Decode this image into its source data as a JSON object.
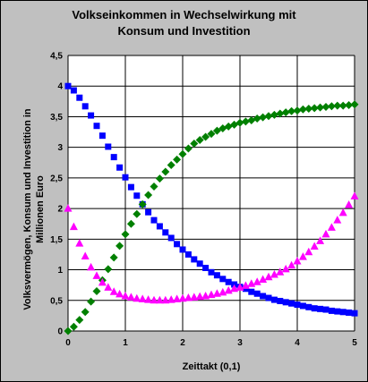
{
  "chart_data": {
    "type": "scatter",
    "title_line1": "Volkseinkommen in Wechselwirkung mit",
    "title_line2": "Konsum und Investition",
    "ylabel_line1": "Volksvermögen, Konsum und Investition in",
    "ylabel_line2": "Millionen Euro",
    "xlabel": "Zeittakt (0,1)",
    "xlim": [
      0,
      5
    ],
    "ylim": [
      0,
      4.5
    ],
    "x_ticks": [
      "0",
      "1",
      "2",
      "3",
      "4",
      "5"
    ],
    "y_ticks": [
      "0",
      "0,5",
      "1",
      "1,5",
      "2",
      "2,5",
      "3",
      "3,5",
      "4",
      "4,5"
    ],
    "grid": true,
    "background": "#c0c0c0",
    "series": [
      {
        "marker": "square",
        "color": "#0000ff",
        "x": [
          0.0,
          0.1,
          0.2,
          0.3,
          0.4,
          0.5,
          0.6,
          0.7,
          0.8,
          0.9,
          1.0,
          1.1,
          1.2,
          1.3,
          1.4,
          1.5,
          1.6,
          1.7,
          1.8,
          1.9,
          2.0,
          2.1,
          2.2,
          2.3,
          2.4,
          2.5,
          2.6,
          2.7,
          2.8,
          2.9,
          3.0,
          3.1,
          3.2,
          3.3,
          3.4,
          3.5,
          3.6,
          3.7,
          3.8,
          3.9,
          4.0,
          4.1,
          4.2,
          4.3,
          4.4,
          4.5,
          4.6,
          4.7,
          4.8,
          4.9,
          5.0
        ],
        "y": [
          4.0,
          3.93,
          3.81,
          3.67,
          3.52,
          3.35,
          3.19,
          3.01,
          2.84,
          2.67,
          2.51,
          2.35,
          2.21,
          2.07,
          1.94,
          1.81,
          1.71,
          1.61,
          1.52,
          1.42,
          1.33,
          1.25,
          1.17,
          1.1,
          1.03,
          0.96,
          0.91,
          0.85,
          0.8,
          0.76,
          0.72,
          0.69,
          0.64,
          0.61,
          0.57,
          0.54,
          0.51,
          0.49,
          0.47,
          0.45,
          0.43,
          0.41,
          0.39,
          0.37,
          0.36,
          0.35,
          0.33,
          0.32,
          0.31,
          0.3,
          0.29
        ]
      },
      {
        "marker": "diamond",
        "color": "#008000",
        "x": [
          0.0,
          0.1,
          0.2,
          0.3,
          0.4,
          0.5,
          0.6,
          0.7,
          0.8,
          0.9,
          1.0,
          1.1,
          1.2,
          1.3,
          1.4,
          1.5,
          1.6,
          1.7,
          1.8,
          1.9,
          2.0,
          2.1,
          2.2,
          2.3,
          2.4,
          2.5,
          2.6,
          2.7,
          2.8,
          2.9,
          3.0,
          3.1,
          3.2,
          3.3,
          3.4,
          3.5,
          3.6,
          3.7,
          3.8,
          3.9,
          4.0,
          4.1,
          4.2,
          4.3,
          4.4,
          4.5,
          4.6,
          4.7,
          4.8,
          4.9,
          5.0
        ],
        "y": [
          0.0,
          0.07,
          0.18,
          0.31,
          0.48,
          0.65,
          0.83,
          1.01,
          1.2,
          1.39,
          1.58,
          1.75,
          1.91,
          2.07,
          2.22,
          2.36,
          2.49,
          2.6,
          2.71,
          2.8,
          2.89,
          2.98,
          3.06,
          3.12,
          3.17,
          3.22,
          3.27,
          3.31,
          3.34,
          3.37,
          3.4,
          3.42,
          3.44,
          3.47,
          3.49,
          3.51,
          3.53,
          3.55,
          3.57,
          3.59,
          3.6,
          3.62,
          3.63,
          3.64,
          3.65,
          3.66,
          3.67,
          3.68,
          3.68,
          3.69,
          3.7
        ]
      },
      {
        "marker": "triangle",
        "color": "#ff00ff",
        "x": [
          0.0,
          0.1,
          0.2,
          0.3,
          0.4,
          0.5,
          0.6,
          0.7,
          0.8,
          0.9,
          1.0,
          1.1,
          1.2,
          1.3,
          1.4,
          1.5,
          1.6,
          1.7,
          1.8,
          1.9,
          2.0,
          2.1,
          2.2,
          2.3,
          2.4,
          2.5,
          2.6,
          2.7,
          2.8,
          2.9,
          3.0,
          3.1,
          3.2,
          3.3,
          3.4,
          3.5,
          3.6,
          3.7,
          3.8,
          3.9,
          4.0,
          4.1,
          4.2,
          4.3,
          4.4,
          4.5,
          4.6,
          4.7,
          4.8,
          4.9,
          5.0
        ],
        "y": [
          2.0,
          1.7,
          1.43,
          1.22,
          1.04,
          0.9,
          0.79,
          0.71,
          0.64,
          0.6,
          0.57,
          0.55,
          0.53,
          0.52,
          0.51,
          0.5,
          0.5,
          0.5,
          0.51,
          0.52,
          0.53,
          0.54,
          0.55,
          0.56,
          0.57,
          0.59,
          0.61,
          0.63,
          0.66,
          0.69,
          0.71,
          0.74,
          0.77,
          0.8,
          0.84,
          0.88,
          0.92,
          0.96,
          1.01,
          1.07,
          1.14,
          1.21,
          1.29,
          1.38,
          1.47,
          1.58,
          1.69,
          1.81,
          1.93,
          2.06,
          2.2
        ]
      }
    ]
  }
}
